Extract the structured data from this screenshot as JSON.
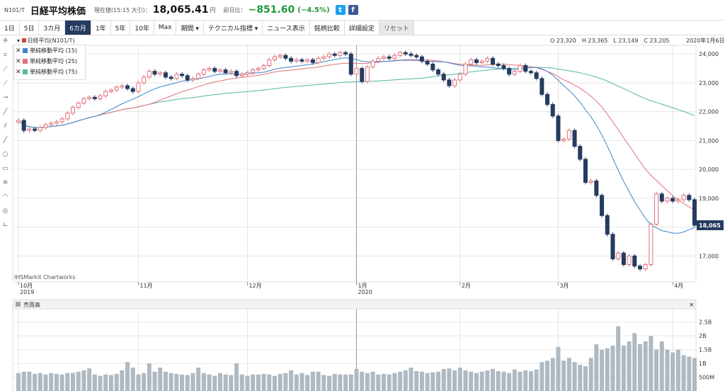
{
  "header": {
    "code": "N101/T",
    "name": "日経平均株価",
    "current_label": "現在値(15:15 大引)：",
    "price": "18,065.41",
    "price_unit": "円",
    "prev_label": "前日比：",
    "change": "−851.60",
    "change_pct": "(−4.5%)",
    "twitter": "t",
    "facebook": "f"
  },
  "toolbar": {
    "items": [
      "1日",
      "5日",
      "3カ月",
      "6カ月",
      "1年",
      "5年",
      "10年",
      "Max",
      "期間 ▾",
      "テクニカル指標 ▾",
      "ニュース表示",
      "銘柄比較",
      "詳細設定",
      "リセット"
    ]
  },
  "chart_header": {
    "series_label": "日経平均(N101/T)",
    "ohlc": "O 23,320　H 23,365　L 23,149　C 23,205",
    "date": "2020年1月6日"
  },
  "legend": [
    {
      "label": "単純移動平均 (15)",
      "color": "#3e86c8"
    },
    {
      "label": "単純移動平均 (25)",
      "color": "#e0707a"
    },
    {
      "label": "単純移動平均 (75)",
      "color": "#54b89e"
    }
  ],
  "watermark": "IHSMarkit Chartworks",
  "volume_panel": {
    "label": "売買高",
    "close": "×"
  },
  "chart_data": {
    "type": "candlestick",
    "y_unit": "円",
    "ylim": [
      16100,
      24300
    ],
    "y_ticks": [
      "24,000",
      "23,000",
      "22,000",
      "21,000",
      "20,000",
      "19,000",
      "18,000",
      "17,000"
    ],
    "y_tick_values": [
      24000,
      23000,
      22000,
      21000,
      20000,
      19000,
      18000,
      17000
    ],
    "x_ticks": [
      {
        "label": "10月",
        "sub": "2019",
        "index": 0
      },
      {
        "label": "11月",
        "sub": "",
        "index": 22
      },
      {
        "label": "12月",
        "sub": "",
        "index": 42
      },
      {
        "label": "1月",
        "sub": "2020",
        "index": 62
      },
      {
        "label": "2月",
        "sub": "",
        "index": 81
      },
      {
        "label": "3月",
        "sub": "",
        "index": 99
      },
      {
        "label": "4月",
        "sub": "",
        "index": 120
      }
    ],
    "last_price_label": "18,065",
    "last_price_value": 18065,
    "close": [
      21700,
      21350,
      21400,
      21350,
      21450,
      21550,
      21600,
      21650,
      21750,
      21950,
      22150,
      22300,
      22450,
      22500,
      22450,
      22550,
      22700,
      22750,
      22850,
      22900,
      22800,
      22700,
      23000,
      23200,
      23400,
      23300,
      23350,
      23200,
      23150,
      23300,
      23250,
      23100,
      23150,
      23300,
      23450,
      23500,
      23400,
      23450,
      23350,
      23400,
      23250,
      23300,
      23350,
      23450,
      23500,
      23600,
      23800,
      23900,
      23950,
      23850,
      23750,
      23800,
      23750,
      23800,
      23700,
      23850,
      23900,
      24000,
      23950,
      24050,
      24000,
      23300,
      23500,
      23050,
      23550,
      23750,
      23850,
      23900,
      23850,
      23950,
      24050,
      24000,
      23950,
      23900,
      23750,
      23650,
      23450,
      23300,
      23100,
      22900,
      23100,
      23300,
      23650,
      23800,
      23700,
      23750,
      23850,
      23650,
      23600,
      23500,
      23300,
      23400,
      23600,
      23400,
      23350,
      23150,
      22600,
      22250,
      21850,
      21000,
      21050,
      21350,
      20800,
      20350,
      19550,
      19600,
      19100,
      18400,
      17750,
      16900,
      17100,
      16700,
      17000,
      16650,
      16550,
      16700,
      18100,
      19150,
      18900,
      19000,
      18900,
      18950,
      19100,
      18950,
      18065
    ],
    "volume_ticks": [
      "2.5B",
      "2B",
      "1.5B",
      "1B",
      "500M"
    ],
    "volume_tick_values": [
      2.5,
      2,
      1.5,
      1,
      0.5
    ],
    "volume_max": 2.75,
    "volume": [
      0.65,
      0.7,
      0.7,
      0.62,
      0.65,
      0.6,
      0.65,
      0.62,
      0.6,
      0.65,
      0.66,
      0.7,
      0.75,
      0.82,
      0.6,
      0.55,
      0.6,
      0.58,
      0.62,
      0.75,
      1.05,
      0.85,
      0.6,
      0.65,
      1.0,
      0.7,
      0.85,
      0.7,
      0.65,
      0.62,
      0.6,
      0.58,
      0.65,
      0.85,
      0.65,
      0.6,
      0.55,
      0.65,
      0.6,
      0.58,
      1.0,
      0.6,
      0.55,
      0.6,
      0.6,
      0.62,
      0.6,
      0.55,
      0.62,
      0.65,
      0.75,
      0.6,
      0.65,
      0.58,
      0.7,
      0.7,
      0.58,
      0.55,
      0.62,
      0.6,
      0.6,
      0.6,
      0.8,
      0.7,
      0.65,
      0.7,
      0.6,
      0.62,
      0.6,
      0.65,
      0.7,
      0.75,
      0.85,
      0.72,
      0.7,
      0.65,
      0.68,
      0.7,
      0.8,
      0.82,
      0.75,
      0.85,
      0.75,
      0.7,
      0.65,
      0.7,
      0.75,
      0.8,
      0.72,
      0.7,
      0.65,
      0.78,
      0.7,
      0.75,
      0.72,
      0.78,
      1.05,
      1.1,
      1.2,
      1.6,
      1.1,
      1.2,
      1.05,
      0.95,
      0.9,
      1.2,
      1.7,
      1.5,
      1.55,
      1.65,
      2.35,
      1.65,
      1.8,
      2.1,
      1.7,
      1.8,
      2.0,
      1.5,
      1.8,
      1.5,
      1.4,
      1.5,
      1.3,
      1.25,
      1.2
    ]
  }
}
